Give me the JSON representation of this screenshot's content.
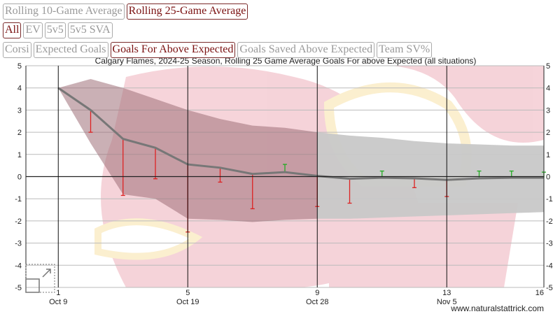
{
  "controls": {
    "period_buttons": [
      {
        "label": "Rolling 10-Game Average",
        "active": false
      },
      {
        "label": "Rolling 25-Game Average",
        "active": true
      }
    ],
    "situation_buttons": [
      {
        "label": "All",
        "active": true
      },
      {
        "label": "EV",
        "active": false
      },
      {
        "label": "5v5",
        "active": false
      },
      {
        "label": "5v5 SVA",
        "active": false
      }
    ],
    "metric_buttons": [
      {
        "label": "Corsi",
        "active": false
      },
      {
        "label": "Expected Goals",
        "active": false
      },
      {
        "label": "Goals For Above Expected",
        "active": true
      },
      {
        "label": "Goals Saved Above Expected",
        "active": false
      },
      {
        "label": "Team SV%",
        "active": false
      }
    ]
  },
  "watermark": "www.naturalstattrick.com",
  "colors": {
    "line": "#777777",
    "neg": "#dd2222",
    "pos": "#22aa22",
    "band_early": "#9e7078",
    "band_late": "#c8c8c8"
  },
  "chart_data": {
    "type": "line",
    "title": "Calgary Flames, 2024-25 Season, Rolling 25 Game Average Goals For above Expected (all situations)",
    "xlim": [
      0,
      16
    ],
    "ylim": [
      -5,
      5
    ],
    "yticks": [
      5,
      4,
      3,
      2,
      1,
      0,
      -1,
      -2,
      -3,
      -4,
      -5
    ],
    "xticks": [
      {
        "x": 1,
        "label": "1",
        "date": "Oct 9"
      },
      {
        "x": 5,
        "label": "5",
        "date": "Oct 19"
      },
      {
        "x": 9,
        "label": "9",
        "date": "Oct 28"
      },
      {
        "x": 13,
        "label": "13",
        "date": "Nov 5"
      },
      {
        "x": 16,
        "label": "16",
        "date": ""
      }
    ],
    "games": [
      1,
      2,
      3,
      4,
      5,
      6,
      7,
      8,
      9,
      10,
      11,
      12,
      13,
      14,
      15,
      16
    ],
    "rolling_avg": [
      4.0,
      3.0,
      1.7,
      1.3,
      0.55,
      0.4,
      0.12,
      0.2,
      0.03,
      -0.1,
      -0.05,
      -0.08,
      -0.15,
      -0.08,
      -0.05,
      -0.05
    ],
    "game_value": [
      4.0,
      2.0,
      -0.85,
      -0.1,
      -2.5,
      -0.25,
      -1.45,
      0.55,
      -1.35,
      -1.2,
      0.25,
      -0.5,
      -0.9,
      0.25,
      0.25,
      0.2
    ],
    "band_upper": [
      4.0,
      4.4,
      4.0,
      3.5,
      3.0,
      2.6,
      2.3,
      2.2,
      2.0,
      1.85,
      1.75,
      1.6,
      1.5,
      1.45,
      1.4,
      1.4
    ],
    "band_lower": [
      4.0,
      1.5,
      -0.8,
      -1.0,
      -1.9,
      -1.95,
      -2.05,
      -1.95,
      -1.9,
      -1.9,
      -1.85,
      -1.8,
      -1.75,
      -1.7,
      -1.65,
      -1.6
    ]
  }
}
